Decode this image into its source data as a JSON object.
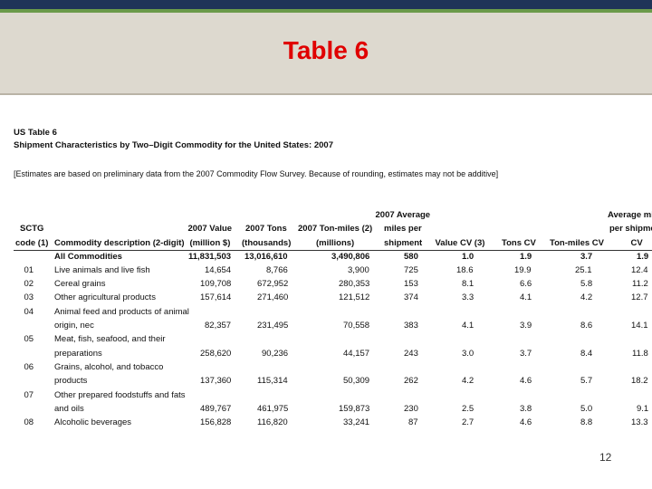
{
  "header": {
    "title": "Table 6"
  },
  "caption": {
    "label": "US Table 6",
    "title": "Shipment Characteristics by Two–Digit Commodity for the United States: 2007",
    "note": "[Estimates are based on preliminary data from the 2007 Commodity Flow Survey. Because of rounding, estimates may not be additive]"
  },
  "table": {
    "header": [
      [
        "SCTG",
        "code (1)"
      ],
      [
        "Commodity description (2-digit)"
      ],
      [
        "2007 Value",
        "(million $)"
      ],
      [
        "2007 Tons",
        "(thousands)"
      ],
      [
        "2007 Ton-miles (2)",
        "(millions)"
      ],
      [
        "2007 Average",
        "miles per",
        "shipment"
      ],
      [
        "Value CV (3)"
      ],
      [
        "Tons CV"
      ],
      [
        "Ton-miles CV"
      ],
      [
        "Average miles",
        "per shipment",
        "CV"
      ]
    ],
    "rows": [
      {
        "description": [
          "All Commodities"
        ],
        "values": [
          "11,831,503",
          "13,016,610",
          "3,490,806",
          "580",
          "1.0",
          "1.9",
          "3.7",
          "1.9"
        ],
        "bold": true
      },
      {
        "code": "01",
        "description": [
          "Live animals and live fish"
        ],
        "values": [
          "14,654",
          "8,766",
          "3,900",
          "725",
          "18.6",
          "19.9",
          "25.1",
          "12.4"
        ]
      },
      {
        "code": "02",
        "description": [
          "Cereal grains"
        ],
        "values": [
          "109,708",
          "672,952",
          "280,353",
          "153",
          "8.1",
          "6.6",
          "5.8",
          "11.2"
        ]
      },
      {
        "code": "03",
        "description": [
          "Other agricultural products"
        ],
        "values": [
          "157,614",
          "271,460",
          "121,512",
          "374",
          "3.3",
          "4.1",
          "4.2",
          "12.7"
        ]
      },
      {
        "code": "04",
        "description": [
          "Animal feed and products of animal",
          "origin, nec"
        ],
        "values": [
          "82,357",
          "231,495",
          "70,558",
          "383",
          "4.1",
          "3.9",
          "8.6",
          "14.1"
        ]
      },
      {
        "code": "05",
        "description": [
          "Meat, fish, seafood, and their",
          "preparations"
        ],
        "values": [
          "258,620",
          "90,236",
          "44,157",
          "243",
          "3.0",
          "3.7",
          "8.4",
          "11.8"
        ]
      },
      {
        "code": "06",
        "description": [
          "Grains, alcohol, and tobacco",
          "products"
        ],
        "values": [
          "137,360",
          "115,314",
          "50,309",
          "262",
          "4.2",
          "4.6",
          "5.7",
          "18.2"
        ]
      },
      {
        "code": "07",
        "description": [
          "Other prepared foodstuffs and fats",
          "and oils"
        ],
        "values": [
          "489,767",
          "461,975",
          "159,873",
          "230",
          "2.5",
          "3.8",
          "5.0",
          "9.1"
        ]
      },
      {
        "code": "08",
        "description": [
          "Alcoholic beverages"
        ],
        "values": [
          "156,828",
          "116,820",
          "33,241",
          "87",
          "2.7",
          "4.6",
          "8.8",
          "13.3"
        ]
      }
    ]
  },
  "footer": {
    "page": "12"
  }
}
